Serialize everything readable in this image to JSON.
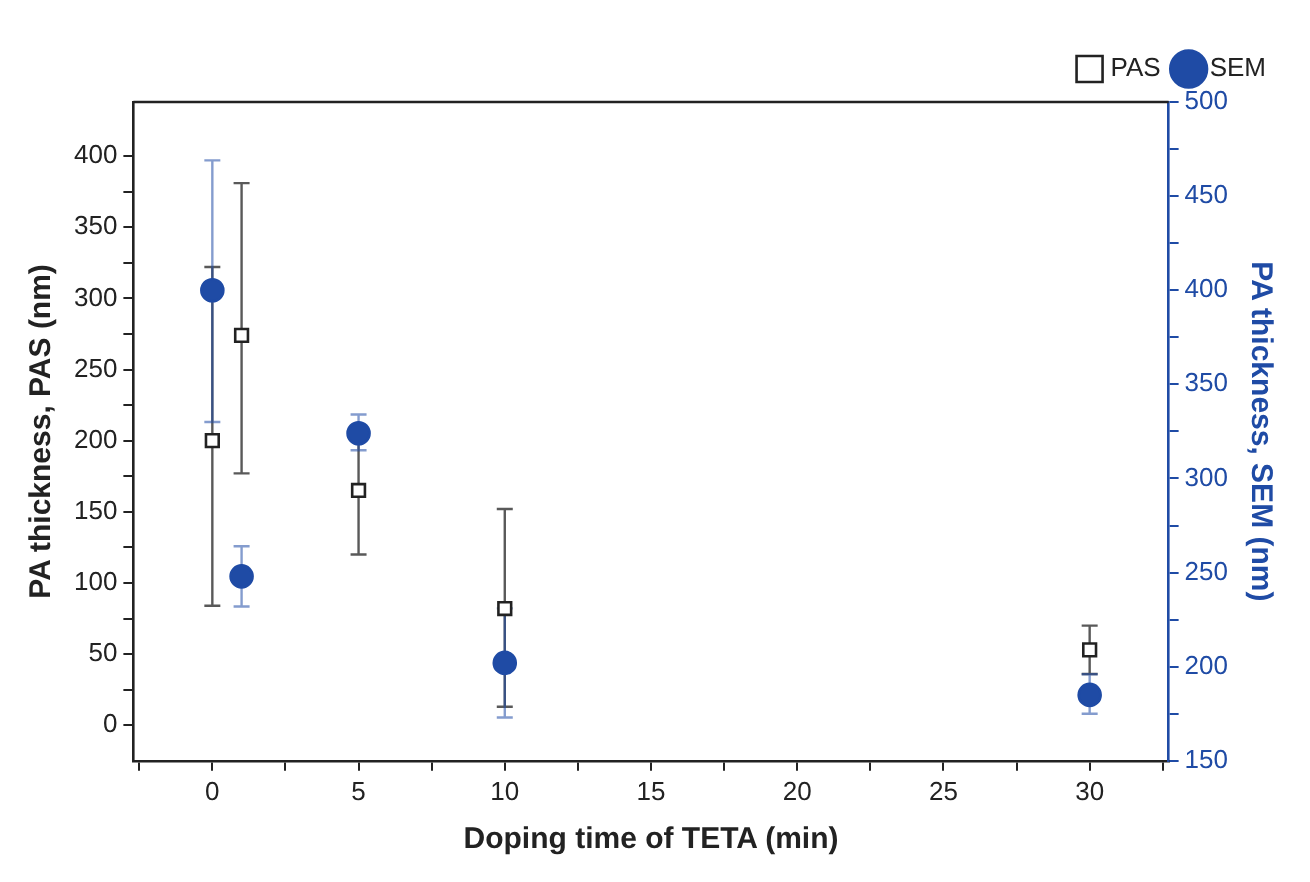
{
  "chart_data": {
    "type": "scatter",
    "xlabel": "Doping time of TETA (min)",
    "ylabel": "PA thickness, PAS (nm)",
    "y2label": "PA thickness, SEM (nm)",
    "x": [
      0,
      1,
      5,
      10,
      30
    ],
    "series": [
      {
        "name": "PAS",
        "color": "#222222",
        "marker": "square",
        "values": [
          200,
          274,
          165,
          82,
          53
        ],
        "errors": [
          [
            84,
            322
          ],
          [
            177,
            381
          ],
          [
            120,
            210
          ],
          [
            13,
            152
          ],
          [
            36,
            70
          ]
        ]
      },
      {
        "name": "SEM",
        "color": "#1f4ba5",
        "marker": "circle",
        "axis": "y2",
        "values": [
          400,
          248,
          324,
          202,
          185
        ],
        "errors": [
          [
            330,
            469
          ],
          [
            232,
            264
          ],
          [
            315,
            334
          ],
          [
            173,
            231
          ],
          [
            175,
            196
          ]
        ]
      }
    ],
    "xlim": [
      -2.7,
      32.7
    ],
    "xticks": [
      {
        "value": -2.5,
        "label": null
      },
      0,
      {
        "value": 2.5,
        "label": null
      },
      5,
      {
        "value": 7.5,
        "label": null
      },
      10,
      {
        "value": 12.5,
        "label": null
      },
      15,
      {
        "value": 17.5,
        "label": null
      },
      20,
      {
        "value": 22.5,
        "label": null
      },
      25,
      {
        "value": 27.5,
        "label": null
      },
      30,
      {
        "value": 32.5,
        "label": null
      }
    ],
    "ylim": [
      -25,
      438
    ],
    "yticks": [
      0,
      {
        "value": 25,
        "label": null
      },
      50,
      {
        "value": 75,
        "label": null
      },
      100,
      {
        "value": 125,
        "label": null
      },
      150,
      {
        "value": 175,
        "label": null
      },
      200,
      {
        "value": 225,
        "label": null
      },
      250,
      {
        "value": 275,
        "label": null
      },
      300,
      {
        "value": 325,
        "label": null
      },
      350,
      {
        "value": 375,
        "label": null
      },
      400
    ],
    "y2lim": [
      150,
      500
    ],
    "y2ticks": [
      150,
      {
        "value": 175,
        "label": null
      },
      200,
      {
        "value": 225,
        "label": null
      },
      250,
      {
        "value": 275,
        "label": null
      },
      300,
      {
        "value": 325,
        "label": null
      },
      350,
      {
        "value": 375,
        "label": null
      },
      400,
      {
        "value": 425,
        "label": null
      },
      450,
      {
        "value": 475,
        "label": null
      },
      500
    ],
    "grid": false,
    "legend": "top right"
  }
}
